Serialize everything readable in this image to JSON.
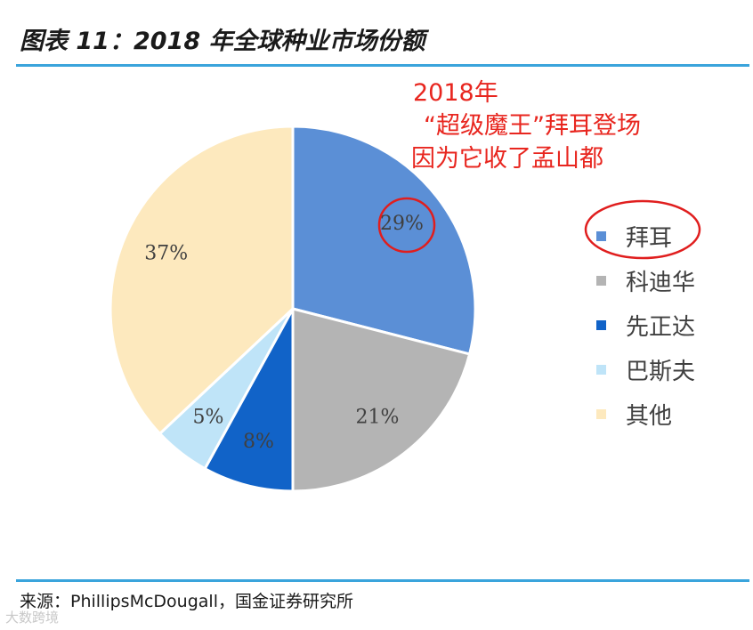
{
  "figure": {
    "title": "图表 11：2018 年全球种业市场份额",
    "source": "来源：PhillipsMcDougall，国金证券研究所",
    "watermark": "大数跨境"
  },
  "annotation": {
    "lines": [
      "2018年",
      "“超级魔王”拜耳登场",
      "因为它收了孟山都"
    ],
    "color": "#e8261f"
  },
  "chart_data": {
    "type": "pie",
    "categories": [
      "拜耳",
      "科迪华",
      "先正达",
      "巴斯夫",
      "其他"
    ],
    "values": [
      29,
      21,
      8,
      5,
      37
    ],
    "labels": [
      "29%",
      "21%",
      "8%",
      "5%",
      "37%"
    ],
    "colors": [
      "#5b8fd6",
      "#b4b4b4",
      "#1163c8",
      "#bfe4f8",
      "#fde9be"
    ],
    "legend_position": "right",
    "highlighted": "拜耳"
  }
}
